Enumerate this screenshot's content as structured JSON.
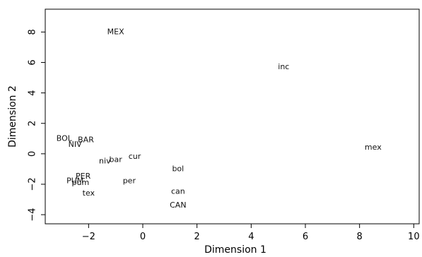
{
  "chart_data": {
    "type": "scatter",
    "title": "",
    "xlabel": "Dimension 1",
    "ylabel": "Dimension 2",
    "xlim": [
      -3.6,
      10.2
    ],
    "ylim": [
      -4.6,
      9.5
    ],
    "xticks": [
      -2,
      0,
      2,
      4,
      6,
      8,
      10
    ],
    "yticks": [
      -4,
      -2,
      0,
      2,
      4,
      6,
      8
    ],
    "xtick_labels": [
      "−2",
      "0",
      "2",
      "4",
      "6",
      "8",
      "10"
    ],
    "ytick_labels": [
      "−4",
      "−2",
      "0",
      "2",
      "4",
      "6",
      "8"
    ],
    "grid": false,
    "legend": "none",
    "points": [
      {
        "label": "MEX",
        "x": -1.0,
        "y": 8.0
      },
      {
        "label": "inc",
        "x": 5.2,
        "y": 5.7
      },
      {
        "label": "mex",
        "x": 8.5,
        "y": 0.4
      },
      {
        "label": "BOL",
        "x": -2.9,
        "y": 1.0
      },
      {
        "label": "BAR",
        "x": -2.1,
        "y": 0.9
      },
      {
        "label": "NIV",
        "x": -2.5,
        "y": 0.6
      },
      {
        "label": "cur",
        "x": -0.3,
        "y": -0.2
      },
      {
        "label": "bar",
        "x": -1.0,
        "y": -0.4
      },
      {
        "label": "niv",
        "x": -1.4,
        "y": -0.5
      },
      {
        "label": "bol",
        "x": 1.3,
        "y": -1.0
      },
      {
        "label": "PER",
        "x": -2.2,
        "y": -1.5
      },
      {
        "label": "per",
        "x": -0.5,
        "y": -1.8
      },
      {
        "label": "PUM",
        "x": -2.5,
        "y": -1.8
      },
      {
        "label": "pum",
        "x": -2.3,
        "y": -1.9
      },
      {
        "label": "can",
        "x": 1.3,
        "y": -2.5
      },
      {
        "label": "tex",
        "x": -2.0,
        "y": -2.6
      },
      {
        "label": "CAN",
        "x": 1.3,
        "y": -3.4
      }
    ]
  }
}
